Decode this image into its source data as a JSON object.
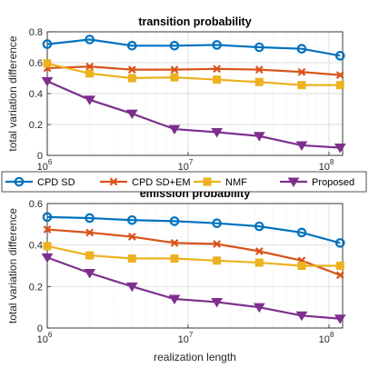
{
  "colors": {
    "cpd_sd": "#0072BD",
    "cpd_sd_em": "#D95319",
    "nmf": "#EDB120",
    "proposed": "#7E2F8E",
    "grid": "#dcdcdc",
    "axis": "#262626"
  },
  "legend": {
    "placement": "between-panels",
    "items": [
      {
        "label": "CPD SD",
        "marker": "circle"
      },
      {
        "label": "CPD SD+EM",
        "marker": "x"
      },
      {
        "label": "NMF",
        "marker": "square"
      },
      {
        "label": "Proposed",
        "marker": "triangle-down"
      }
    ]
  },
  "chart_data": [
    {
      "type": "line",
      "title": "transition probability",
      "xlabel": "",
      "ylabel": "total variation difference",
      "xscale": "log",
      "xlim": [
        1000000,
        125000000
      ],
      "ylim": [
        0,
        0.8
      ],
      "yticks": [
        "0",
        "0.2",
        "0.4",
        "0.6",
        "0.8"
      ],
      "xticks": [
        {
          "base": "10",
          "exp": "6"
        },
        {
          "base": "10",
          "exp": "7"
        },
        {
          "base": "10",
          "exp": "8"
        }
      ],
      "grid": true,
      "x": [
        1000000,
        2000000,
        4000000,
        8000000,
        16000000,
        32000000,
        64000000,
        120000000
      ],
      "series": [
        {
          "name": "CPD SD",
          "values": [
            0.72,
            0.75,
            0.71,
            0.71,
            0.715,
            0.7,
            0.69,
            0.645
          ]
        },
        {
          "name": "CPD SD+EM",
          "values": [
            0.565,
            0.575,
            0.555,
            0.555,
            0.56,
            0.555,
            0.54,
            0.52
          ]
        },
        {
          "name": "NMF",
          "values": [
            0.595,
            0.53,
            0.5,
            0.505,
            0.49,
            0.475,
            0.455,
            0.455
          ]
        },
        {
          "name": "Proposed",
          "values": [
            0.48,
            0.36,
            0.27,
            0.17,
            0.15,
            0.125,
            0.065,
            0.05
          ]
        }
      ]
    },
    {
      "type": "line",
      "title": "emission probability",
      "xlabel": "realization length",
      "ylabel": "total variation difference",
      "xscale": "log",
      "xlim": [
        1000000,
        125000000
      ],
      "ylim": [
        0,
        0.6
      ],
      "yticks": [
        "0",
        "0.2",
        "0.4",
        "0.6"
      ],
      "xticks": [
        {
          "base": "10",
          "exp": "6"
        },
        {
          "base": "10",
          "exp": "7"
        },
        {
          "base": "10",
          "exp": "8"
        }
      ],
      "grid": true,
      "x": [
        1000000,
        2000000,
        4000000,
        8000000,
        16000000,
        32000000,
        64000000,
        120000000
      ],
      "series": [
        {
          "name": "CPD SD",
          "values": [
            0.535,
            0.53,
            0.52,
            0.515,
            0.505,
            0.49,
            0.46,
            0.41
          ]
        },
        {
          "name": "CPD SD+EM",
          "values": [
            0.475,
            0.46,
            0.44,
            0.41,
            0.405,
            0.37,
            0.325,
            0.255
          ]
        },
        {
          "name": "NMF",
          "values": [
            0.395,
            0.35,
            0.335,
            0.335,
            0.325,
            0.315,
            0.3,
            0.3
          ]
        },
        {
          "name": "Proposed",
          "values": [
            0.34,
            0.265,
            0.2,
            0.14,
            0.125,
            0.1,
            0.06,
            0.045
          ]
        }
      ]
    }
  ]
}
